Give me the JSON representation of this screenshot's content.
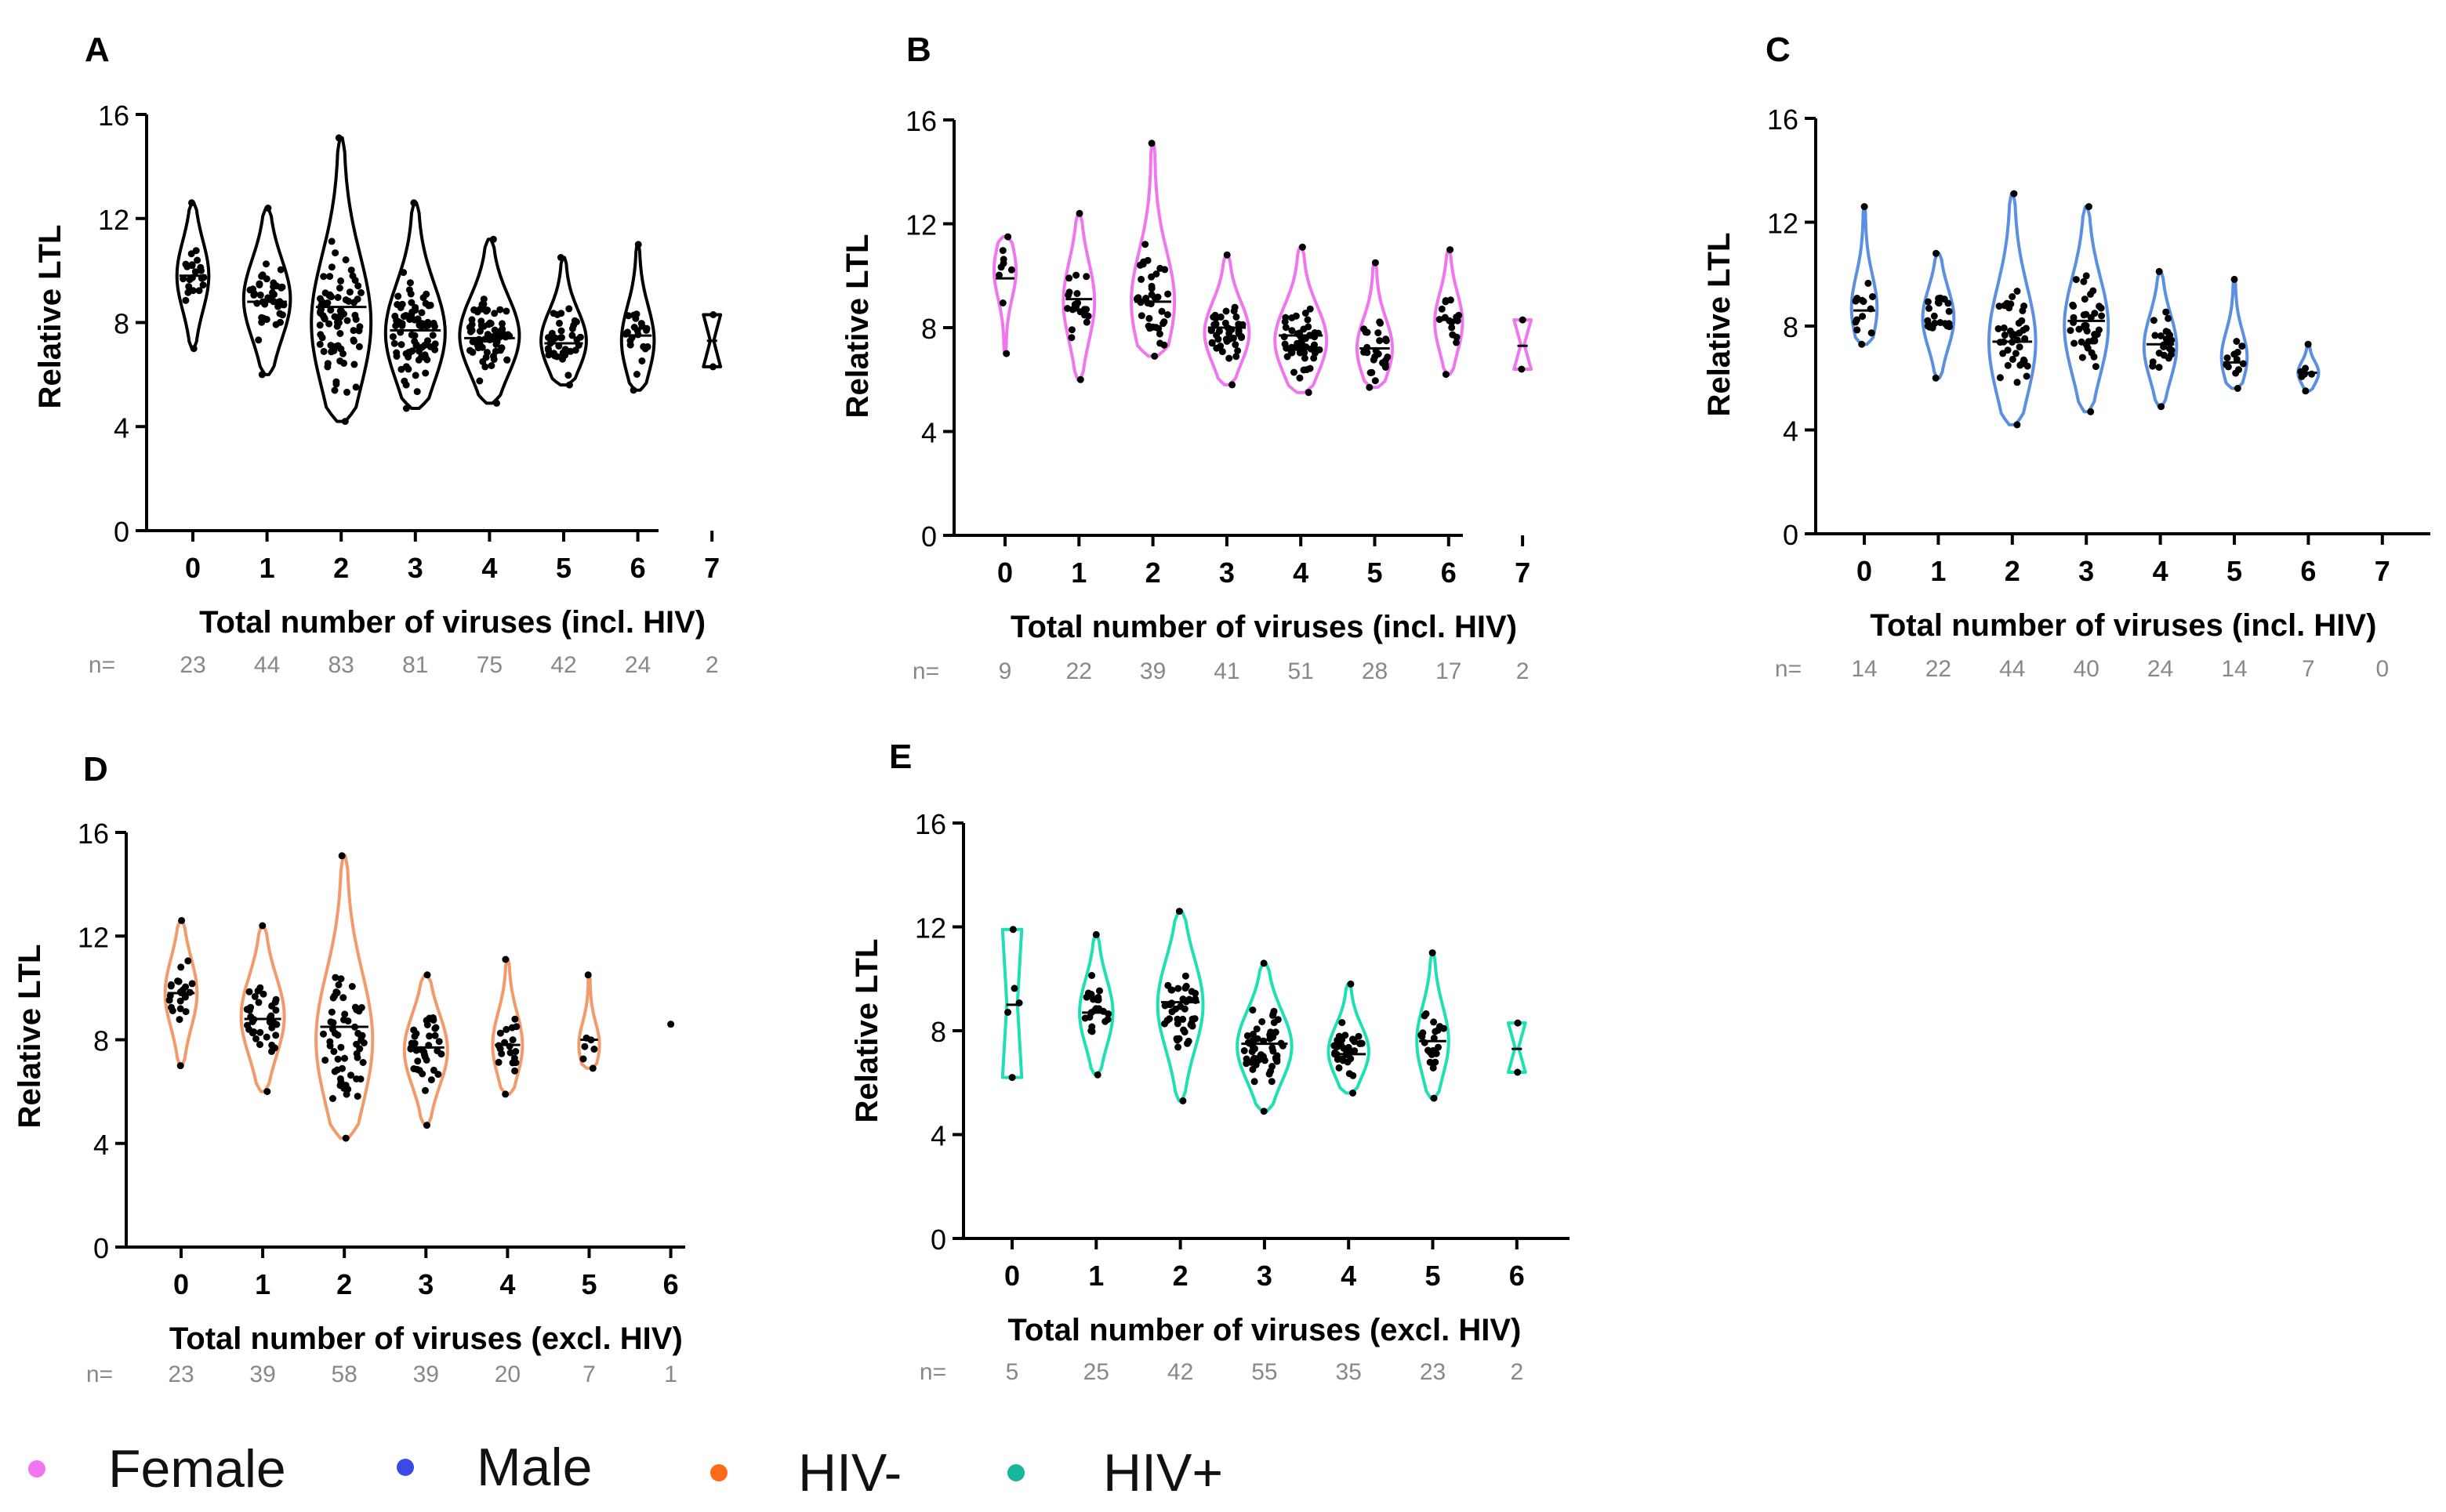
{
  "chart_data": [
    {
      "panel": "A",
      "type": "violin",
      "color": "#000000",
      "xlabel": "Total number of viruses (incl. HIV)",
      "ylabel": "Relative LTL",
      "ylim": [
        0,
        16
      ],
      "yticks": [
        "0",
        "4",
        "8",
        "12",
        "16"
      ],
      "categories": [
        "0",
        "1",
        "2",
        "3",
        "4",
        "5",
        "6",
        "7"
      ],
      "n_label": "n=",
      "n": [
        "23",
        "44",
        "83",
        "81",
        "75",
        "42",
        "24",
        "2"
      ],
      "min": [
        7.0,
        6.0,
        4.2,
        4.7,
        4.9,
        5.6,
        5.4,
        6.3
      ],
      "max": [
        12.6,
        12.4,
        15.1,
        12.6,
        11.2,
        10.5,
        11.0,
        8.3
      ],
      "median": [
        9.8,
        8.8,
        8.6,
        7.7,
        7.4,
        7.2,
        7.5,
        7.3
      ],
      "peak": [
        9.8,
        8.9,
        8.0,
        7.6,
        7.5,
        7.3,
        7.3,
        7.3
      ]
    },
    {
      "panel": "B",
      "type": "violin",
      "color": "#f075ef",
      "xlabel": "Total number of viruses (incl. HIV)",
      "ylabel": "Relative LTL",
      "ylim": [
        0,
        16
      ],
      "yticks": [
        "0",
        "4",
        "8",
        "12",
        "16"
      ],
      "categories": [
        "0",
        "1",
        "2",
        "3",
        "4",
        "5",
        "6",
        "7"
      ],
      "n_label": "n=",
      "n": [
        "9",
        "22",
        "39",
        "41",
        "51",
        "28",
        "17",
        "2"
      ],
      "min": [
        7.0,
        6.0,
        6.9,
        5.8,
        5.5,
        5.7,
        6.2,
        6.4
      ],
      "max": [
        11.5,
        12.4,
        15.1,
        10.8,
        11.1,
        10.5,
        11.0,
        8.3
      ],
      "median": [
        9.9,
        9.1,
        9.0,
        8.0,
        7.7,
        7.2,
        8.3,
        7.3
      ],
      "peak": [
        10.2,
        9.0,
        9.0,
        7.8,
        7.5,
        7.2,
        8.2,
        7.3
      ]
    },
    {
      "panel": "C",
      "type": "violin",
      "color": "#5b8fe0",
      "xlabel": "Total number of viruses (incl. HIV)",
      "ylabel": "Relative LTL",
      "ylim": [
        0,
        16
      ],
      "yticks": [
        "0",
        "4",
        "8",
        "12",
        "16"
      ],
      "categories": [
        "0",
        "1",
        "2",
        "3",
        "4",
        "5",
        "6",
        "7"
      ],
      "n_label": "n=",
      "n": [
        "14",
        "22",
        "44",
        "40",
        "24",
        "14",
        "7",
        "0"
      ],
      "min": [
        7.3,
        6.0,
        4.2,
        4.7,
        4.9,
        5.6,
        5.5,
        null
      ],
      "max": [
        12.6,
        10.8,
        13.1,
        12.6,
        10.1,
        9.8,
        7.3,
        null
      ],
      "median": [
        8.6,
        8.1,
        7.4,
        8.2,
        7.3,
        6.6,
        6.2,
        null
      ],
      "peak": [
        8.7,
        8.3,
        7.4,
        8.0,
        7.2,
        6.8,
        6.2,
        null
      ]
    },
    {
      "panel": "D",
      "type": "violin",
      "color": "#f29a6a",
      "xlabel": "Total number of viruses (excl. HIV)",
      "ylabel": "Relative LTL",
      "ylim": [
        0,
        16
      ],
      "yticks": [
        "0",
        "4",
        "8",
        "12",
        "16"
      ],
      "categories": [
        "0",
        "1",
        "2",
        "3",
        "4",
        "5",
        "6"
      ],
      "n_label": "n=",
      "n": [
        "23",
        "39",
        "58",
        "39",
        "20",
        "7",
        "1"
      ],
      "min": [
        7.0,
        6.0,
        4.2,
        4.7,
        5.9,
        6.9,
        8.6
      ],
      "max": [
        12.6,
        12.4,
        15.1,
        10.5,
        11.1,
        10.5,
        8.6
      ],
      "median": [
        9.8,
        8.8,
        8.5,
        7.7,
        7.8,
        8.0,
        8.6
      ],
      "peak": [
        9.8,
        8.9,
        8.0,
        7.6,
        7.8,
        7.8,
        8.6
      ]
    },
    {
      "panel": "E",
      "type": "violin",
      "color": "#1fe0b4",
      "xlabel": "Total number of viruses (excl. HIV)",
      "ylabel": "Relative LTL",
      "ylim": [
        0,
        16
      ],
      "yticks": [
        "0",
        "4",
        "8",
        "12",
        "16"
      ],
      "categories": [
        "0",
        "1",
        "2",
        "3",
        "4",
        "5",
        "6"
      ],
      "n_label": "n=",
      "n": [
        "5",
        "25",
        "42",
        "55",
        "35",
        "23",
        "2"
      ],
      "min": [
        6.2,
        6.3,
        5.3,
        4.9,
        5.6,
        5.4,
        6.4
      ],
      "max": [
        11.9,
        11.7,
        12.6,
        10.6,
        9.8,
        11.0,
        8.3
      ],
      "median": [
        9.0,
        8.7,
        9.1,
        7.5,
        7.1,
        7.6,
        7.3
      ],
      "peak": [
        9.0,
        8.7,
        9.0,
        7.4,
        7.2,
        7.6,
        7.3
      ]
    }
  ],
  "legend": [
    {
      "label": "Female",
      "color": "#f075ef"
    },
    {
      "label": "Male",
      "color": "#3b49e6"
    },
    {
      "label": "HIV-",
      "color": "#ff6a1a"
    },
    {
      "label": "HIV+",
      "color": "#16b89c"
    }
  ]
}
